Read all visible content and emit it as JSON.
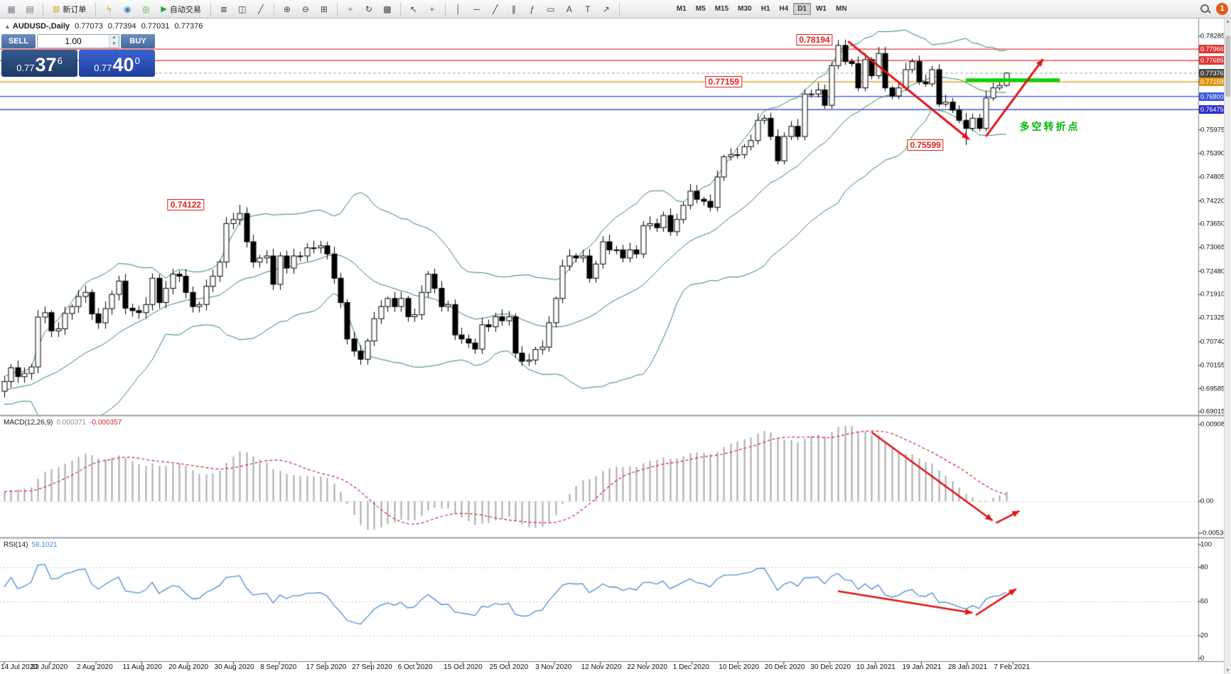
{
  "toolbar": {
    "badge": "1",
    "items": [
      {
        "type": "icon",
        "name": "new-chart-icon",
        "glyph": "▦",
        "color": "#6b7b8d"
      },
      {
        "type": "icon",
        "name": "chart-profiles-icon",
        "glyph": "▤",
        "color": "#6b7b8d"
      },
      {
        "type": "sep"
      },
      {
        "type": "button",
        "name": "new-order-button",
        "glyph": "▥",
        "glyph_color": "#d7a021",
        "label": "新订单"
      },
      {
        "type": "sep"
      },
      {
        "type": "icon",
        "name": "metaeditor-icon",
        "glyph": "ϟ",
        "color": "#d7a021"
      },
      {
        "type": "icon",
        "name": "market-watch-icon",
        "glyph": "◉",
        "color": "#3f7fc1"
      },
      {
        "type": "icon",
        "name": "strategy-tester-icon",
        "glyph": "◎",
        "color": "#4aa34a"
      },
      {
        "type": "button",
        "name": "autotrading-button",
        "glyph": "▶",
        "glyph_color": "#2fa12f",
        "label": "自动交易"
      },
      {
        "type": "sep"
      },
      {
        "type": "icon",
        "name": "bar-chart-icon",
        "glyph": "≣",
        "color": "#444444"
      },
      {
        "type": "icon",
        "name": "candlestick-chart-icon",
        "glyph": "◫",
        "color": "#444444"
      },
      {
        "type": "icon",
        "name": "line-chart-icon",
        "glyph": "╱",
        "color": "#444444"
      },
      {
        "type": "sep"
      },
      {
        "type": "icon",
        "name": "zoom-in-icon",
        "glyph": "⊕",
        "color": "#444444"
      },
      {
        "type": "icon",
        "name": "zoom-out-icon",
        "glyph": "⊖",
        "color": "#444444"
      },
      {
        "type": "icon",
        "name": "tile-windows-icon",
        "glyph": "⊞",
        "color": "#444444"
      },
      {
        "type": "sep"
      },
      {
        "type": "icon",
        "name": "indicators-icon",
        "glyph": "+",
        "color": "#2fa12f"
      },
      {
        "type": "icon",
        "name": "periods-icon",
        "glyph": "↻",
        "color": "#444444"
      },
      {
        "type": "icon",
        "name": "templates-icon",
        "glyph": "▩",
        "color": "#444444"
      },
      {
        "type": "sep"
      },
      {
        "type": "icon",
        "name": "cursor-icon",
        "glyph": "↖",
        "color": "#444444"
      },
      {
        "type": "icon",
        "name": "crosshair-icon",
        "glyph": "+",
        "color": "#666666"
      },
      {
        "type": "sep"
      },
      {
        "type": "icon",
        "name": "vertical-line-icon",
        "glyph": "│",
        "color": "#444444"
      },
      {
        "type": "icon",
        "name": "horizontal-line-icon",
        "glyph": "─",
        "color": "#444444"
      },
      {
        "type": "icon",
        "name": "trendline-icon",
        "glyph": "╱",
        "color": "#444444"
      },
      {
        "type": "icon",
        "name": "channel-icon",
        "glyph": "∥",
        "color": "#444444"
      },
      {
        "type": "icon",
        "name": "fibonacci-icon",
        "glyph": "ƒ",
        "color": "#444444"
      },
      {
        "type": "icon",
        "name": "shapes-icon",
        "glyph": "▭",
        "color": "#444444"
      },
      {
        "type": "icon",
        "name": "text-icon",
        "glyph": "A",
        "color": "#444444"
      },
      {
        "type": "icon",
        "name": "text-label-icon",
        "glyph": "T",
        "color": "#444444"
      },
      {
        "type": "icon",
        "name": "arrows-tool-icon",
        "glyph": "↗",
        "color": "#444444"
      },
      {
        "type": "sep"
      }
    ],
    "timeframes": [
      {
        "label": "M1",
        "active": false
      },
      {
        "label": "M5",
        "active": false
      },
      {
        "label": "M15",
        "active": false
      },
      {
        "label": "M30",
        "active": false
      },
      {
        "label": "H1",
        "active": false
      },
      {
        "label": "H4",
        "active": false
      },
      {
        "label": "D1",
        "active": true
      },
      {
        "label": "W1",
        "active": false
      },
      {
        "label": "MN",
        "active": false
      }
    ]
  },
  "chart_header": {
    "symbol": "AUDUSD-,Daily",
    "open": "0.77073",
    "high": "0.77394",
    "low": "0.77031",
    "close": "0.77376"
  },
  "one_click": {
    "sell_label": "SELL",
    "buy_label": "BUY",
    "volume": "1.00",
    "sell_price": {
      "prefix": "0.77",
      "pips": "37",
      "point": "6"
    },
    "buy_price": {
      "prefix": "0.77",
      "pips": "40",
      "point": "0"
    }
  },
  "chart_data": {
    "type": "candlestick",
    "symbol": "AUDUSD-",
    "timeframe": "Daily",
    "title": "AUDUSD-,Daily 0.77073 0.77394 0.77031 0.77376",
    "closes": [
      0.6976,
      0.701,
      0.6988,
      0.6996,
      0.7012,
      0.7135,
      0.7146,
      0.7101,
      0.7106,
      0.7144,
      0.7161,
      0.7186,
      0.7196,
      0.7143,
      0.7121,
      0.7156,
      0.7191,
      0.7224,
      0.7157,
      0.7151,
      0.7146,
      0.7166,
      0.7231,
      0.7171,
      0.7206,
      0.7241,
      0.7236,
      0.7196,
      0.7161,
      0.7166,
      0.7211,
      0.7236,
      0.7271,
      0.7366,
      0.7376,
      0.7391,
      0.7321,
      0.7271,
      0.7281,
      0.7286,
      0.7216,
      0.7286,
      0.7256,
      0.7286,
      0.7286,
      0.7306,
      0.7306,
      0.7311,
      0.7291,
      0.7231,
      0.7171,
      0.7081,
      0.7051,
      0.7031,
      0.7076,
      0.7131,
      0.7161,
      0.7181,
      0.7161,
      0.7181,
      0.7136,
      0.7141,
      0.7196,
      0.7241,
      0.7206,
      0.7161,
      0.7166,
      0.7091,
      0.7081,
      0.7071,
      0.7056,
      0.7116,
      0.7111,
      0.7136,
      0.7126,
      0.7136,
      0.7046,
      0.7026,
      0.7029,
      0.7055,
      0.7061,
      0.7121,
      0.7181,
      0.7261,
      0.7286,
      0.7281,
      0.7286,
      0.7231,
      0.7266,
      0.7321,
      0.7301,
      0.7301,
      0.7281,
      0.7301,
      0.7291,
      0.7361,
      0.7366,
      0.7356,
      0.7386,
      0.7346,
      0.7376,
      0.7411,
      0.7446,
      0.7426,
      0.7421,
      0.7406,
      0.7481,
      0.7531,
      0.7536,
      0.7536,
      0.7556,
      0.7571,
      0.7621,
      0.7626,
      0.7581,
      0.7521,
      0.7581,
      0.7606,
      0.7581,
      0.7686,
      0.7686,
      0.7696,
      0.7658,
      0.7756,
      0.7806,
      0.7766,
      0.7761,
      0.7701,
      0.7771,
      0.7731,
      0.7786,
      0.7701,
      0.7681,
      0.7701,
      0.7746,
      0.7766,
      0.7716,
      0.7711,
      0.7746,
      0.7661,
      0.7666,
      0.7646,
      0.7621,
      0.7601,
      0.7626,
      0.7601,
      0.7676,
      0.7701,
      0.7707,
      0.77376
    ],
    "key_points": [
      {
        "index": 35,
        "high": 0.74122
      },
      {
        "index": 124,
        "high": 0.78194
      },
      {
        "index": 143,
        "low": 0.75599
      },
      {
        "index": 149,
        "open": 0.77073,
        "high": 0.77394,
        "low": 0.77031,
        "close": 0.77376
      }
    ],
    "bollinger": {
      "period": 20,
      "deviation": 2,
      "color": "#2e8b57"
    },
    "macd": {
      "label": "MACD(12,26,9)",
      "value_main": "0.000371",
      "value_signal": "-0.000357",
      "axis_labels": [
        "0.009081",
        "0.00",
        "-0.005306"
      ],
      "hist_color": "#a8a8a8",
      "signal_color": "#d32424"
    },
    "rsi": {
      "label": "RSI(14)",
      "value": "58.1021",
      "axis_values": [
        100,
        80,
        50,
        20,
        0
      ],
      "levels": [
        80,
        50,
        20
      ],
      "line_color": "#4a8fd8"
    },
    "price_axis_labels": [
      "0.78285",
      "0.75975",
      "0.75390",
      "0.74805",
      "0.74220",
      "0.73650",
      "0.73065",
      "0.72480",
      "0.71910",
      "0.71325",
      "0.70740",
      "0.70155",
      "0.69585",
      "0.69015"
    ],
    "price_tags": [
      {
        "text": "0.77966",
        "price": 0.77966,
        "bg": "#e03535"
      },
      {
        "text": "0.77685",
        "price": 0.77685,
        "bg": "#e03535"
      },
      {
        "text": "0.77376",
        "price": 0.77376,
        "bg": "#454545"
      },
      {
        "text": "0.77159",
        "price": 0.77159,
        "bg": "#e0940c"
      },
      {
        "text": "0.76800",
        "price": 0.768,
        "bg": "#3a55d9"
      },
      {
        "text": "0.76475",
        "price": 0.76475,
        "bg": "#2e2ec8"
      }
    ],
    "hlines": [
      {
        "price": 0.77966,
        "color": "#e03535",
        "dash": false
      },
      {
        "price": 0.77685,
        "color": "#e03535",
        "dash": false
      },
      {
        "price": 0.77159,
        "color": "#e0940c",
        "dash": false
      },
      {
        "price": 0.768,
        "color": "#3a55d9",
        "dash": false
      },
      {
        "price": 0.76475,
        "color": "#2e2ec8",
        "dash": false
      },
      {
        "price": 0.77376,
        "color": "#b5b5b5",
        "dash": true
      }
    ],
    "green_segment": {
      "price": 0.772,
      "from_i": 143,
      "to_i": 157,
      "color": "#00d500",
      "width": 5
    },
    "annotations": {
      "price_flags": [
        {
          "text": "0.78194",
          "i": 120.5,
          "p": 0.782
        },
        {
          "text": "0.77159",
          "i": 107,
          "p": 0.77159
        },
        {
          "text": "0.74122",
          "i": 27,
          "p": 0.74122
        },
        {
          "text": "0.75599",
          "i": 137,
          "p": 0.75599
        }
      ],
      "note": {
        "text": "多空转折点",
        "i": 155.5,
        "p": 0.7606,
        "color": "#00b800"
      },
      "arrows": {
        "main": [
          {
            "from": {
              "i": 125.5,
              "p": 0.7816
            },
            "to": {
              "i": 143.5,
              "p": 0.7574
            }
          },
          {
            "from": {
              "i": 146,
              "p": 0.7581
            },
            "to": {
              "i": 154.5,
              "p": 0.7772
            }
          }
        ],
        "macd": [
          {
            "from": {
              "i": 129,
              "f": 0.13
            },
            "to": {
              "i": 147,
              "f": 0.86
            }
          },
          {
            "from": {
              "i": 147.5,
              "f": 0.88
            },
            "to": {
              "i": 151,
              "f": 0.78
            }
          }
        ],
        "rsi": [
          {
            "from": {
              "i": 124,
              "r": 59
            },
            "to": {
              "i": 144,
              "r": 40
            }
          },
          {
            "from": {
              "i": 144.5,
              "r": 38
            },
            "to": {
              "i": 150.5,
              "r": 61
            }
          }
        ]
      },
      "arrow_color": "#e01515"
    },
    "candle_colors": {
      "up_fill": "#ffffff",
      "down_fill": "#000000",
      "outline": "#000000"
    },
    "date_labels": [
      "14 Jul 2020",
      "23 Jul 2020",
      "2 Aug 2020",
      "11 Aug 2020",
      "20 Aug 2020",
      "30 Aug 2020",
      "8 Sep 2020",
      "17 Sep 2020",
      "27 Sep 2020",
      "6 Oct 2020",
      "15 Oct 2020",
      "25 Oct 2020",
      "3 Nov 2020",
      "12 Nov 2020",
      "22 Nov 2020",
      "1 Dec 2020",
      "10 Dec 2020",
      "20 Dec 2020",
      "30 Dec 2020",
      "10 Jan 2021",
      "19 Jan 2021",
      "28 Jan 2021",
      "7 Feb 2021"
    ]
  }
}
